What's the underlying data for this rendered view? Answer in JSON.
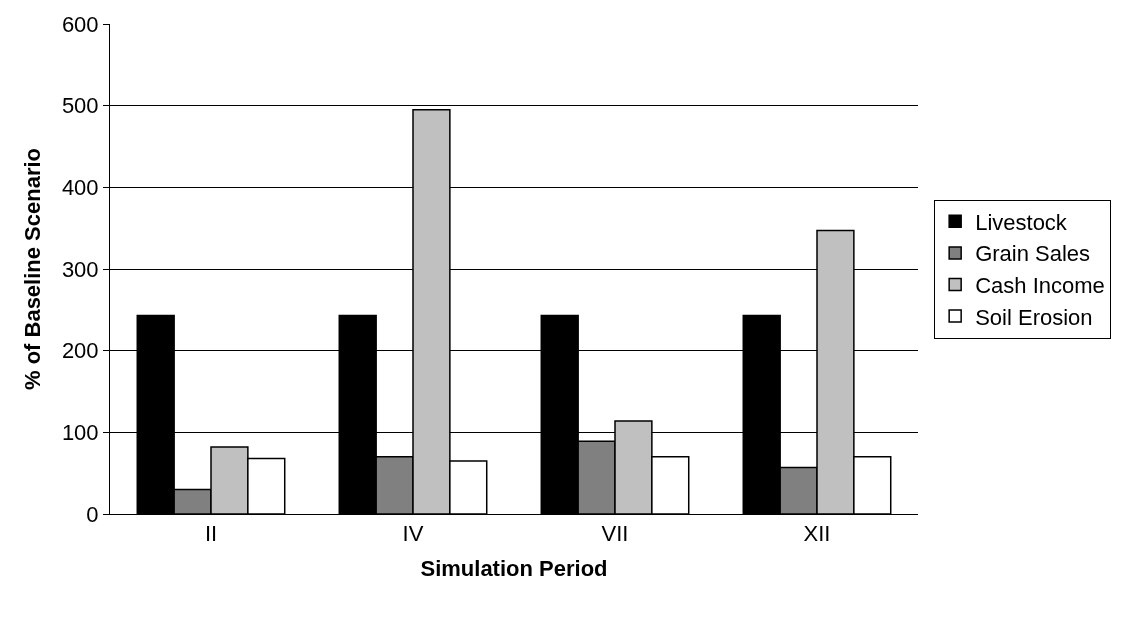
{
  "chart_data": {
    "type": "bar",
    "xlabel": "Simulation Period",
    "ylabel": "% of Baseline Scenario",
    "categories": [
      "II",
      "IV",
      "VII",
      "XII"
    ],
    "series": [
      {
        "name": "Livestock",
        "color": "#000000",
        "values": [
          243,
          243,
          243,
          243
        ]
      },
      {
        "name": "Grain Sales",
        "color": "#808080",
        "values": [
          30,
          70,
          89,
          57
        ]
      },
      {
        "name": "Cash Income",
        "color": "#c0c0c0",
        "values": [
          82,
          495,
          114,
          347
        ]
      },
      {
        "name": "Soil Erosion",
        "color": "#ffffff",
        "values": [
          68,
          65,
          70,
          70
        ]
      }
    ],
    "ylim": [
      0,
      600
    ],
    "yticks": [
      0,
      100,
      200,
      300,
      400,
      500,
      600
    ],
    "grid": "y",
    "legend": "right"
  }
}
